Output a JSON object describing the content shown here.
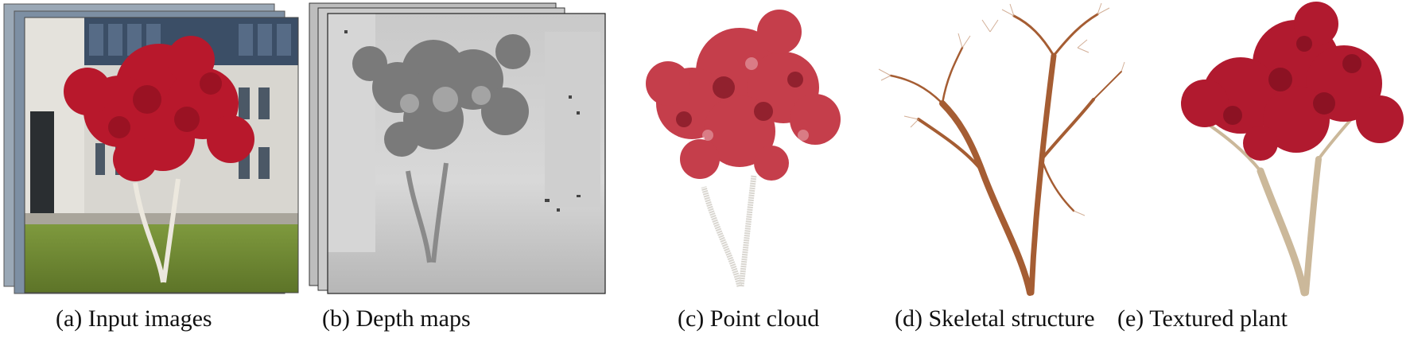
{
  "figure": {
    "panels": [
      {
        "id": "a",
        "caption": "(a) Input images"
      },
      {
        "id": "b",
        "caption": "(b) Depth maps"
      },
      {
        "id": "c",
        "caption": "(c) Point cloud"
      },
      {
        "id": "d",
        "caption": "(d) Skeletal structure"
      },
      {
        "id": "e",
        "caption": "(e) Textured plant"
      }
    ]
  },
  "colors": {
    "foliage_red": "#b8182c",
    "foliage_dark": "#8e1020",
    "bark_white": "#e9e4da",
    "bark_brown": "#a55d33",
    "grass": "#6f8a35",
    "depth_light": "#dcdcdc",
    "depth_dark": "#7a7a7a"
  }
}
